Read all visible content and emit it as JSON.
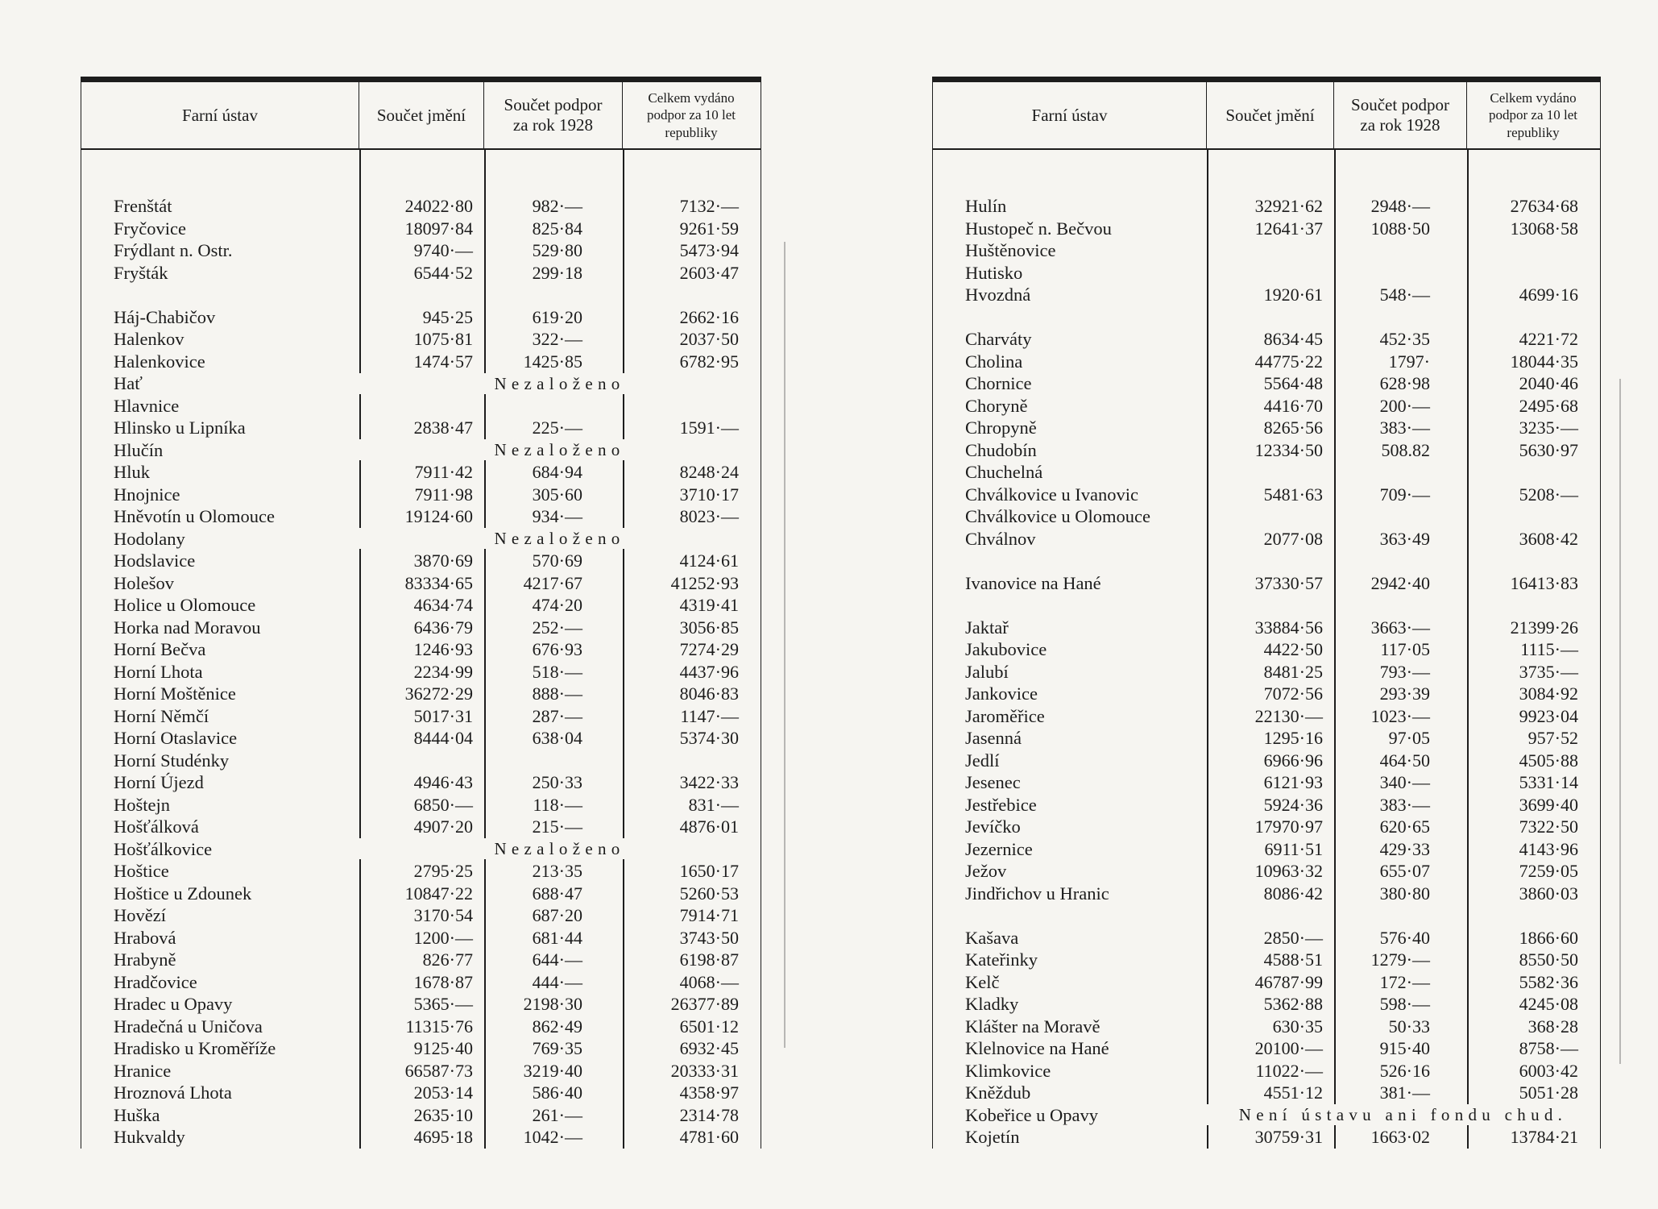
{
  "page": {
    "kind": "scanned printed statistical table, Czech, two facing table columns",
    "colors": {
      "paper": "#f6f5f1",
      "ink": "#1c1c1c"
    }
  },
  "tables": [
    {
      "headers": {
        "col1": "Farní ústav",
        "col2": "Součet jmění",
        "col3": "Součet podpor\nza rok 1928",
        "col4": "Celkem vydáno\npodpor za 10 let\nrepubliky"
      },
      "rows": [
        {
          "n": "Frenštát",
          "j": "24022·80",
          "p": "982·—",
          "c": "7132·—"
        },
        {
          "n": "Fryčovice",
          "j": "18097·84",
          "p": "825·84",
          "c": "9261·59"
        },
        {
          "n": "Frýdlant n. Ostr.",
          "j": "9740·—",
          "p": "529·80",
          "c": "5473·94"
        },
        {
          "n": "Fryšták",
          "j": "6544·52",
          "p": "299·18",
          "c": "2603·47"
        },
        {
          "sp": true
        },
        {
          "n": "Háj-Chabičov",
          "j": "945·25",
          "p": "619·20",
          "c": "2662·16"
        },
        {
          "n": "Halenkov",
          "j": "1075·81",
          "p": "322·—",
          "c": "2037·50"
        },
        {
          "n": "Halenkovice",
          "j": "1474·57",
          "p": "1425·85",
          "c": "6782·95"
        },
        {
          "n": "Hať",
          "note": "Nezaloženo"
        },
        {
          "n": "Hlavnice"
        },
        {
          "n": "Hlinsko u Lipníka",
          "j": "2838·47",
          "p": "225·—",
          "c": "1591·—"
        },
        {
          "n": "Hlučín",
          "note": "Nezaloženo"
        },
        {
          "n": "Hluk",
          "j": "7911·42",
          "p": "684·94",
          "c": "8248·24"
        },
        {
          "n": "Hnojnice",
          "j": "7911·98",
          "p": "305·60",
          "c": "3710·17"
        },
        {
          "n": "Hněvotín u Olomouce",
          "j": "19124·60",
          "p": "934·—",
          "c": "8023·—"
        },
        {
          "n": "Hodolany",
          "note": "Nezaloženo"
        },
        {
          "n": "Hodslavice",
          "j": "3870·69",
          "p": "570·69",
          "c": "4124·61"
        },
        {
          "n": "Holešov",
          "j": "83334·65",
          "p": "4217·67",
          "c": "41252·93"
        },
        {
          "n": "Holice u Olomouce",
          "j": "4634·74",
          "p": "474·20",
          "c": "4319·41"
        },
        {
          "n": "Horka nad Moravou",
          "j": "6436·79",
          "p": "252·—",
          "c": "3056·85"
        },
        {
          "n": "Horní Bečva",
          "j": "1246·93",
          "p": "676·93",
          "c": "7274·29"
        },
        {
          "n": "Horní Lhota",
          "j": "2234·99",
          "p": "518·—",
          "c": "4437·96"
        },
        {
          "n": "Horní Moštěnice",
          "j": "36272·29",
          "p": "888·—",
          "c": "8046·83"
        },
        {
          "n": "Horní Němčí",
          "j": "5017·31",
          "p": "287·—",
          "c": "1147·—"
        },
        {
          "n": "Horní Otaslavice",
          "j": "8444·04",
          "p": "638·04",
          "c": "5374·30"
        },
        {
          "n": "Horní Studénky"
        },
        {
          "n": "Horní Újezd",
          "j": "4946·43",
          "p": "250·33",
          "c": "3422·33"
        },
        {
          "n": "Hoštejn",
          "j": "6850·—",
          "p": "118·—",
          "c": "831·—"
        },
        {
          "n": "Hošťálková",
          "j": "4907·20",
          "p": "215·—",
          "c": "4876·01"
        },
        {
          "n": "Hošťálkovice",
          "note": "Nezaloženo"
        },
        {
          "n": "Hoštice",
          "j": "2795·25",
          "p": "213·35",
          "c": "1650·17"
        },
        {
          "n": "Hoštice u Zdounek",
          "j": "10847·22",
          "p": "688·47",
          "c": "5260·53"
        },
        {
          "n": "Hovězí",
          "j": "3170·54",
          "p": "687·20",
          "c": "7914·71"
        },
        {
          "n": "Hrabová",
          "j": "1200·—",
          "p": "681·44",
          "c": "3743·50"
        },
        {
          "n": "Hrabyně",
          "j": "826·77",
          "p": "644·—",
          "c": "6198·87"
        },
        {
          "n": "Hradčovice",
          "j": "1678·87",
          "p": "444·—",
          "c": "4068·—"
        },
        {
          "n": "Hradec u Opavy",
          "j": "5365·—",
          "p": "2198·30",
          "c": "26377·89"
        },
        {
          "n": "Hradečná u Uničova",
          "j": "11315·76",
          "p": "862·49",
          "c": "6501·12"
        },
        {
          "n": "Hradisko u Kroměříže",
          "j": "9125·40",
          "p": "769·35",
          "c": "6932·45"
        },
        {
          "n": "Hranice",
          "j": "66587·73",
          "p": "3219·40",
          "c": "20333·31"
        },
        {
          "n": "Hroznová Lhota",
          "j": "2053·14",
          "p": "586·40",
          "c": "4358·97"
        },
        {
          "n": "Huška",
          "j": "2635·10",
          "p": "261·—",
          "c": "2314·78"
        },
        {
          "n": "Hukvaldy",
          "j": "4695·18",
          "p": "1042·—",
          "c": "4781·60"
        }
      ]
    },
    {
      "headers": {
        "col1": "Farní ústav",
        "col2": "Součet jmění",
        "col3": "Součet podpor\nza rok 1928",
        "col4": "Celkem vydáno\npodpor za 10 let\nrepubliky"
      },
      "rows": [
        {
          "n": "Hulín",
          "j": "32921·62",
          "p": "2948·—",
          "c": "27634·68"
        },
        {
          "n": "Hustopeč n. Bečvou",
          "j": "12641·37",
          "p": "1088·50",
          "c": "13068·58"
        },
        {
          "n": "Huštěnovice"
        },
        {
          "n": "Hutisko"
        },
        {
          "n": "Hvozdná",
          "j": "1920·61",
          "p": "548·—",
          "c": "4699·16"
        },
        {
          "sp": true
        },
        {
          "n": "Charváty",
          "j": "8634·45",
          "p": "452·35",
          "c": "4221·72"
        },
        {
          "n": "Cholina",
          "j": "44775·22",
          "p": "1797·",
          "c": "18044·35"
        },
        {
          "n": "Chornice",
          "j": "5564·48",
          "p": "628·98",
          "c": "2040·46"
        },
        {
          "n": "Choryně",
          "j": "4416·70",
          "p": "200·—",
          "c": "2495·68"
        },
        {
          "n": "Chropyně",
          "j": "8265·56",
          "p": "383·—",
          "c": "3235·—"
        },
        {
          "n": "Chudobín",
          "j": "12334·50",
          "p": "508.82",
          "c": "5630·97"
        },
        {
          "n": "Chuchelná"
        },
        {
          "n": "Chválkovice u Ivanovic",
          "j": "5481·63",
          "p": "709·—",
          "c": "5208·—"
        },
        {
          "n": "Chválkovice u Olomouce"
        },
        {
          "n": "Chválnov",
          "j": "2077·08",
          "p": "363·49",
          "c": "3608·42"
        },
        {
          "sp": true
        },
        {
          "n": "Ivanovice na Hané",
          "j": "37330·57",
          "p": "2942·40",
          "c": "16413·83"
        },
        {
          "sp": true
        },
        {
          "n": "Jaktař",
          "j": "33884·56",
          "p": "3663·—",
          "c": "21399·26"
        },
        {
          "n": "Jakubovice",
          "j": "4422·50",
          "p": "117·05",
          "c": "1115·—"
        },
        {
          "n": "Jalubí",
          "j": "8481·25",
          "p": "793·—",
          "c": "3735·—"
        },
        {
          "n": "Jankovice",
          "j": "7072·56",
          "p": "293·39",
          "c": "3084·92"
        },
        {
          "n": "Jaroměřice",
          "j": "22130·—",
          "p": "1023·—",
          "c": "9923·04"
        },
        {
          "n": "Jasenná",
          "j": "1295·16",
          "p": "97·05",
          "c": "957·52"
        },
        {
          "n": "Jedlí",
          "j": "6966·96",
          "p": "464·50",
          "c": "4505·88"
        },
        {
          "n": "Jesenec",
          "j": "6121·93",
          "p": "340·—",
          "c": "5331·14"
        },
        {
          "n": "Jestřebice",
          "j": "5924·36",
          "p": "383·—",
          "c": "3699·40"
        },
        {
          "n": "Jevíčko",
          "j": "17970·97",
          "p": "620·65",
          "c": "7322·50"
        },
        {
          "n": "Jezernice",
          "j": "6911·51",
          "p": "429·33",
          "c": "4143·96"
        },
        {
          "n": "Ježov",
          "j": "10963·32",
          "p": "655·07",
          "c": "7259·05"
        },
        {
          "n": "Jindřichov u Hranic",
          "j": "8086·42",
          "p": "380·80",
          "c": "3860·03"
        },
        {
          "sp": true
        },
        {
          "n": "Kašava",
          "j": "2850·—",
          "p": "576·40",
          "c": "1866·60"
        },
        {
          "n": "Kateřinky",
          "j": "4588·51",
          "p": "1279·—",
          "c": "8550·50"
        },
        {
          "n": "Kelč",
          "j": "46787·99",
          "p": "172·—",
          "c": "5582·36"
        },
        {
          "n": "Kladky",
          "j": "5362·88",
          "p": "598·—",
          "c": "4245·08"
        },
        {
          "n": "Klášter na Moravě",
          "j": "630·35",
          "p": "50·33",
          "c": "368·28"
        },
        {
          "n": "Klelnovice na Hané",
          "j": "20100·—",
          "p": "915·40",
          "c": "8758·—"
        },
        {
          "n": "Klimkovice",
          "j": "11022·—",
          "p": "526·16",
          "c": "6003·42"
        },
        {
          "n": "Kněždub",
          "j": "4551·12",
          "p": "381·—",
          "c": "5051·28"
        },
        {
          "n": "Kobeřice u Opavy",
          "note": "Není ústavu ani fondu chud."
        },
        {
          "n": "Kojetín",
          "j": "30759·31",
          "p": "1663·02",
          "c": "13784·21"
        }
      ]
    }
  ]
}
